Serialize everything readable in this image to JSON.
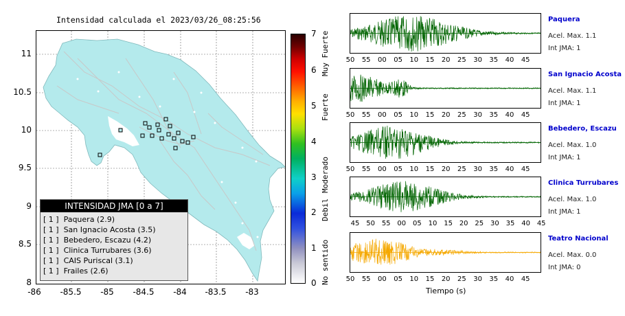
{
  "map": {
    "title": "Intensidad calculada el 2023/03/26_08:25:56",
    "y_ticks": [
      "11",
      "10.5",
      "10",
      "9.5",
      "9",
      "8.5",
      "8"
    ],
    "x_ticks": [
      "-86",
      "-85.5",
      "-85",
      "-84.5",
      "-84",
      "-83.5",
      "-83"
    ],
    "land_color": "#b4eaec",
    "ocean_color": "#ffffff"
  },
  "legend": {
    "header": "INTENSIDAD JMA [0 a 7]",
    "rows": [
      "[ 1 ]  Paquera (2.9)",
      "[ 1 ]  San Ignacio Acosta (3.5)",
      "[ 1 ]  Bebedero, Escazu (4.2)",
      "[ 1 ]  Clinica Turrubares (3.6)",
      "[ 1 ]  CAIS Puriscal (3.1)",
      "[ 1 ]  Frailes (2.6)"
    ]
  },
  "colorbar": {
    "ticks": [
      "7",
      "6",
      "5",
      "4",
      "3",
      "2",
      "1",
      "0"
    ],
    "labels": [
      "Muy Fuerte",
      "Fuerte",
      "Moderado",
      "Debil",
      "No sentido"
    ]
  },
  "traces": [
    {
      "station": "Paquera",
      "accel_label": "Acel. Max. 1.1",
      "jma_label": "Int JMA: 1",
      "color": "#006400",
      "ticks": [
        "50",
        "55",
        "00",
        "05",
        "10",
        "15",
        "20",
        "25",
        "30",
        "35",
        "40",
        "45"
      ]
    },
    {
      "station": "San Ignacio Acosta",
      "accel_label": "Acel. Max. 1.1",
      "jma_label": "Int JMA: 1",
      "color": "#006400",
      "ticks": [
        "50",
        "55",
        "00",
        "05",
        "10",
        "15",
        "20",
        "25",
        "30",
        "35",
        "40",
        "45"
      ]
    },
    {
      "station": "Bebedero, Escazu",
      "accel_label": "Acel. Max. 1.0",
      "jma_label": "Int JMA: 1",
      "color": "#006400",
      "ticks": [
        "50",
        "55",
        "00",
        "05",
        "10",
        "15",
        "20",
        "25",
        "30",
        "35",
        "40",
        "45"
      ]
    },
    {
      "station": "Clinica Turrubares",
      "accel_label": "Acel. Max. 1.0",
      "jma_label": "Int JMA: 1",
      "color": "#006400",
      "ticks": [
        "45",
        "50",
        "55",
        "00",
        "05",
        "10",
        "15",
        "20",
        "25",
        "30",
        "35",
        "40",
        "45"
      ]
    },
    {
      "station": "Teatro Nacional",
      "accel_label": "Acel. Max. 0.0",
      "jma_label": "Int JMA: 0",
      "color": "#f5a800",
      "ticks": [
        "50",
        "55",
        "00",
        "05",
        "10",
        "15",
        "20",
        "25",
        "30",
        "35",
        "40",
        "45"
      ]
    }
  ],
  "xlabel": "Tiempo (s)"
}
